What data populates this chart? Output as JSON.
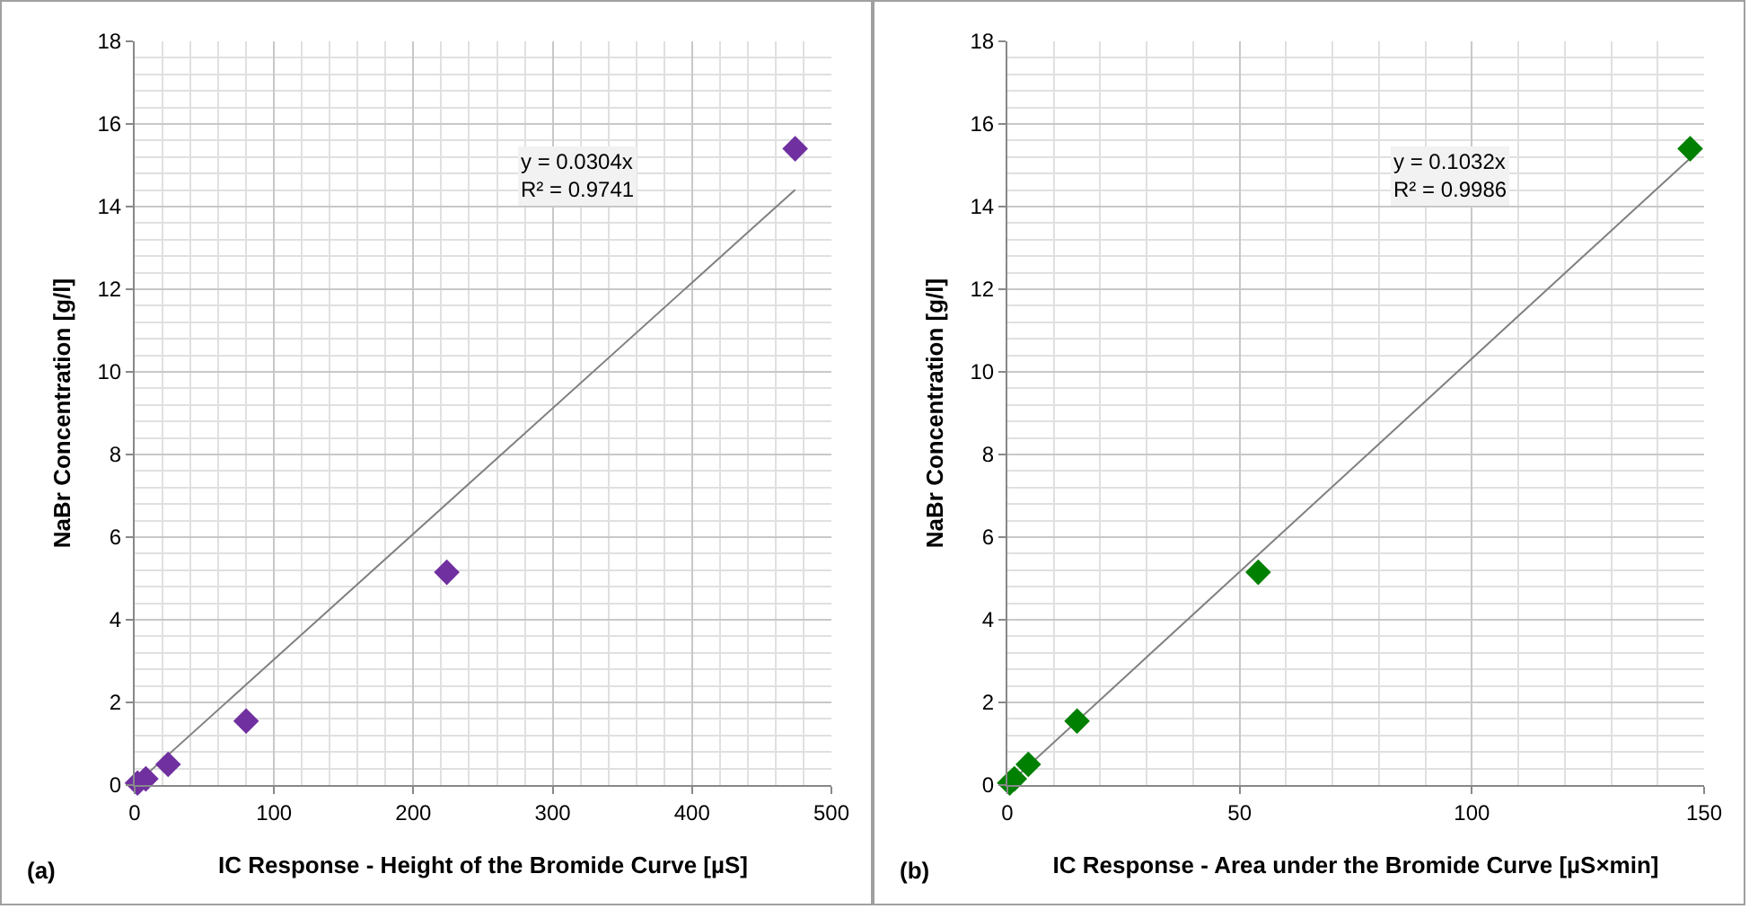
{
  "chart_data": [
    {
      "type": "scatter",
      "xlabel": "IC Response - Height of the Bromide Curve [µS]",
      "ylabel": "NaBr Concentration [g/l]",
      "marker": "diamond",
      "grid": true,
      "xlim": [
        0,
        500
      ],
      "xticks": [
        0,
        100,
        200,
        300,
        400,
        500
      ],
      "ylim": [
        0,
        18
      ],
      "yticks": [
        0,
        2,
        4,
        6,
        8,
        10,
        12,
        14,
        16,
        18
      ],
      "annotations": [
        "y = 0.0304x\nR² = 0.9741",
        "(a)"
      ],
      "series": [
        {
          "color": "#7030a0",
          "x": [
            2,
            8,
            24,
            80,
            224,
            474
          ],
          "values": [
            0.05,
            0.15,
            0.5,
            1.55,
            5.15,
            15.4
          ]
        },
        {
          "type": "line",
          "color": "#808080",
          "marker": "none",
          "x": [
            0,
            474
          ],
          "values": [
            0,
            14.41
          ]
        }
      ]
    },
    {
      "type": "scatter",
      "xlabel": "IC Response - Area under the Bromide Curve [µS×min]",
      "ylabel": "NaBr Concentration [g/l]",
      "marker": "diamond",
      "grid": true,
      "xlim": [
        0,
        150
      ],
      "xticks": [
        0,
        50,
        100,
        150
      ],
      "ylim": [
        0,
        18
      ],
      "yticks": [
        0,
        2,
        4,
        6,
        8,
        10,
        12,
        14,
        16,
        18
      ],
      "annotations": [
        "y = 0.1032x\nR² = 0.9986",
        "(b)"
      ],
      "series": [
        {
          "color": "#008000",
          "x": [
            0.5,
            1.5,
            4.5,
            15,
            54,
            147
          ],
          "values": [
            0.05,
            0.15,
            0.5,
            1.55,
            5.15,
            15.4
          ]
        },
        {
          "type": "line",
          "color": "#808080",
          "marker": "none",
          "x": [
            0,
            147
          ],
          "values": [
            0,
            15.17
          ]
        }
      ]
    }
  ]
}
